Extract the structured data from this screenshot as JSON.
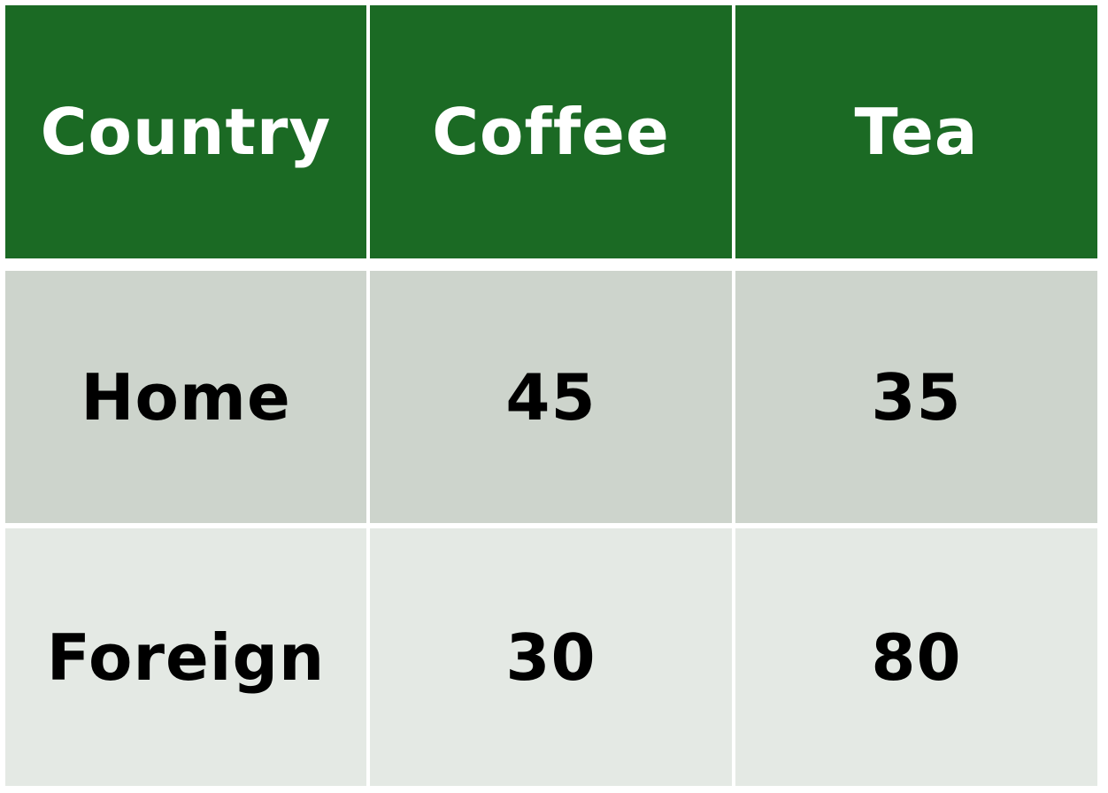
{
  "table": {
    "headers": [
      "Country",
      "Coffee",
      "Tea"
    ],
    "rows": [
      [
        "Home",
        "45",
        "35"
      ],
      [
        "Foreign",
        "30",
        "80"
      ]
    ],
    "colors": {
      "header_bg": "#1b6a24",
      "header_text": "#ffffff",
      "row1_bg": "#cdd4cc",
      "row2_bg": "#e4e9e4",
      "body_text": "#000000"
    }
  }
}
